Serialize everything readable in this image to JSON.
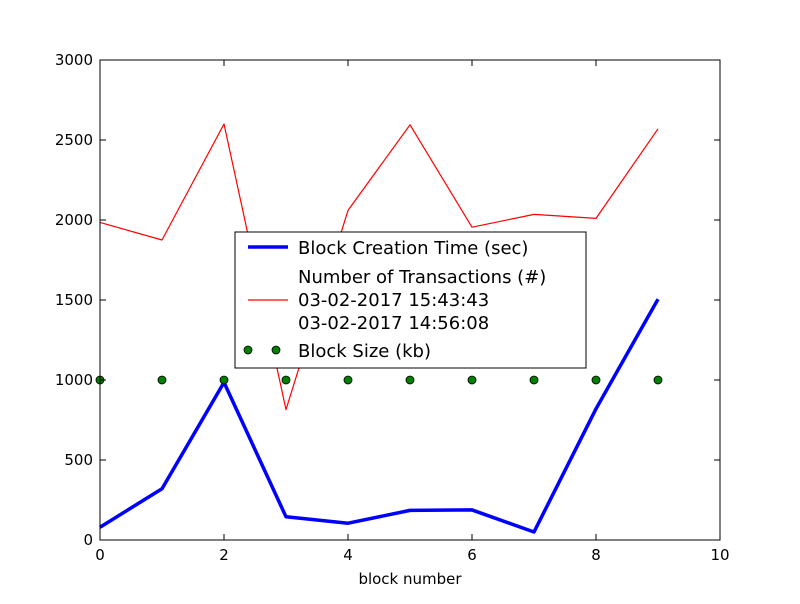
{
  "chart_data": {
    "type": "line",
    "title": "",
    "xlabel": "block number",
    "ylabel": "",
    "xlim": [
      0,
      10
    ],
    "ylim": [
      0,
      3000
    ],
    "x_ticks": [
      0,
      2,
      4,
      6,
      8,
      10
    ],
    "y_ticks": [
      0,
      500,
      1000,
      1500,
      2000,
      2500,
      3000
    ],
    "grid": false,
    "legend_position": "center",
    "x": [
      0,
      1,
      2,
      3,
      4,
      5,
      6,
      7,
      8,
      9
    ],
    "series": [
      {
        "name": "Block Creation Time (sec)",
        "style": "line",
        "color": "#0000ff",
        "values": [
          80,
          320,
          985,
          145,
          105,
          185,
          188,
          50,
          820,
          1505
        ]
      },
      {
        "name": "Number of Transactions (#)\n03-02-2017 15:43:43\n03-02-2017 14:56:08",
        "style": "line",
        "color": "#ff0000",
        "values": [
          1985,
          1875,
          2600,
          815,
          2060,
          2595,
          1955,
          2035,
          2010,
          2570
        ]
      },
      {
        "name": "Block Size (kb)",
        "style": "markers",
        "color": "#008000",
        "values": [
          1000,
          1000,
          1000,
          1000,
          1000,
          1000,
          1000,
          1000,
          1000,
          1000
        ]
      }
    ]
  }
}
